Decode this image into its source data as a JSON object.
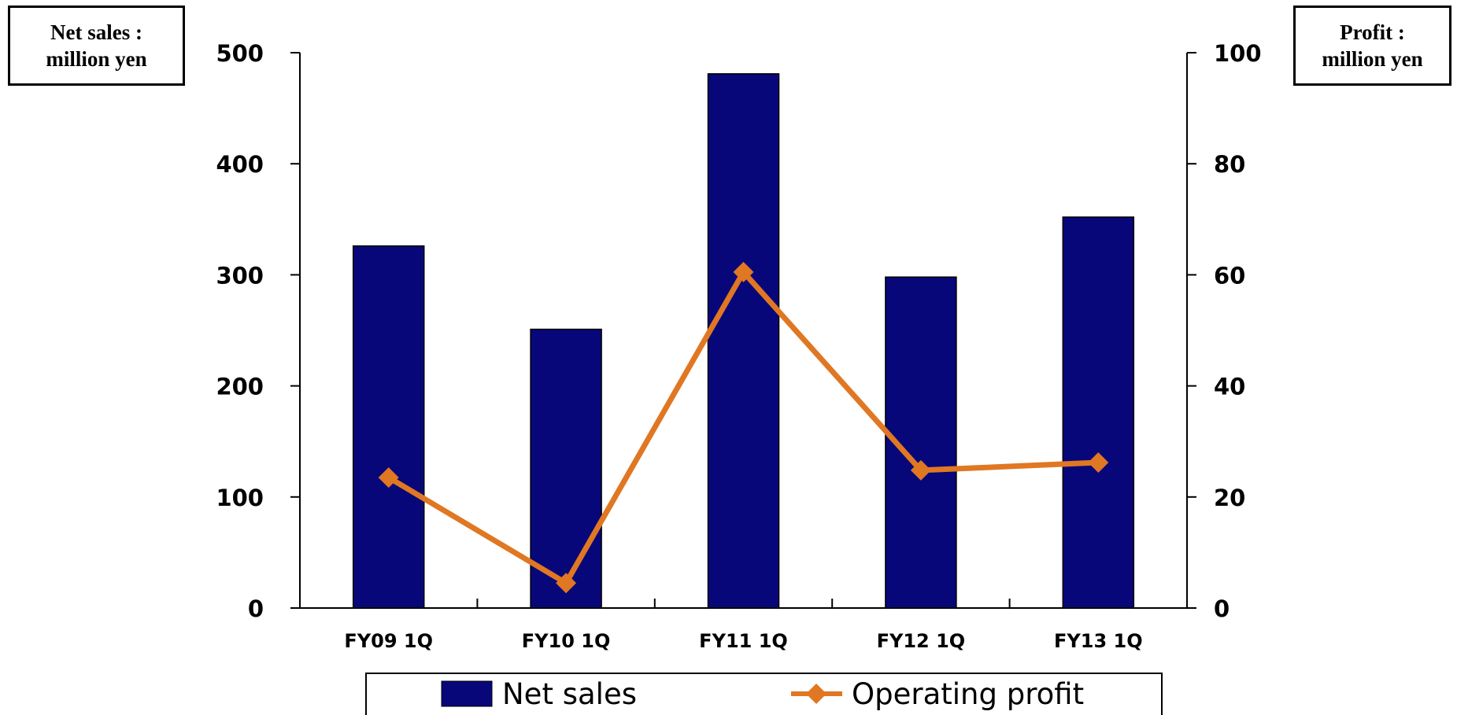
{
  "left_unit": {
    "line1": "Net sales :",
    "line2": "million yen"
  },
  "right_unit": {
    "line1": "Profit :",
    "line2": "million yen"
  },
  "colors": {
    "bar": "#07077a",
    "line": "#e07722",
    "axis": "#000000"
  },
  "chart_data": {
    "type": "bar",
    "categories": [
      "FY09 1Q",
      "FY10 1Q",
      "FY11 1Q",
      "FY12 1Q",
      "FY13 1Q"
    ],
    "series": [
      {
        "name": "Net sales",
        "type": "bar",
        "axis": "left",
        "values": [
          326,
          251,
          481,
          298,
          352
        ]
      },
      {
        "name": "Operating profit",
        "type": "line",
        "axis": "right",
        "values": [
          23.5,
          4.5,
          60.5,
          24.8,
          26.2
        ]
      }
    ],
    "ylim_left": [
      0,
      500
    ],
    "yticks_left": [
      "0",
      "100",
      "200",
      "300",
      "400",
      "500"
    ],
    "ylim_right": [
      0,
      100
    ],
    "yticks_right": [
      "0",
      "20",
      "40",
      "60",
      "80",
      "100"
    ],
    "legend": {
      "placement": "bottom",
      "entries": [
        "Net sales",
        "Operating profit"
      ]
    },
    "grid": false
  }
}
